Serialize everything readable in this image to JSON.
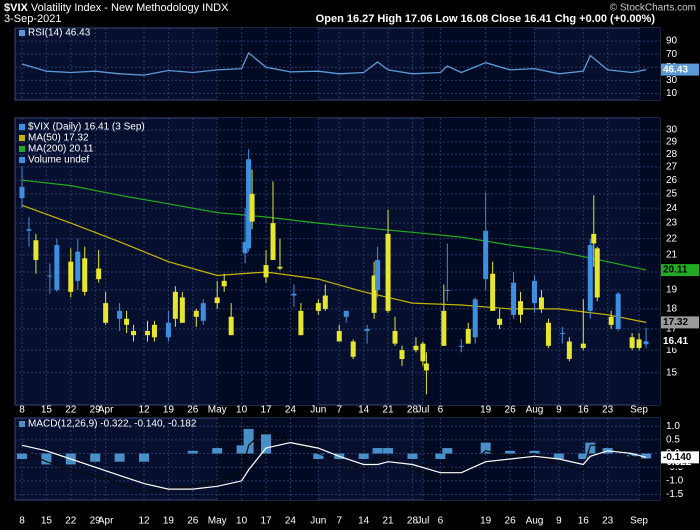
{
  "header": {
    "symbol": "$VIX",
    "name": "Volatility Index - New Methodology",
    "exchange": "INDX",
    "date": "3-Sep-2021",
    "quote": "Open 16.27 High 17.06 Low 16.08 Close 16.41 Chg +0.00 (+0.00%)",
    "credit": "© StockCharts.com"
  },
  "chart_data": [
    {
      "type": "line",
      "name": "RSI(14) 46.43",
      "color": "#5b9bd5",
      "last": 46.43,
      "grid": true,
      "xlim": [
        "2021-03-06",
        "2021-09-07"
      ],
      "x": [
        "2021-03-08",
        "2021-03-15",
        "2021-03-22",
        "2021-03-29",
        "2021-04-05",
        "2021-04-12",
        "2021-04-19",
        "2021-04-26",
        "2021-05-03",
        "2021-05-10",
        "2021-05-12",
        "2021-05-17",
        "2021-05-24",
        "2021-06-01",
        "2021-06-07",
        "2021-06-14",
        "2021-06-18",
        "2021-06-21",
        "2021-06-28",
        "2021-07-06",
        "2021-07-08",
        "2021-07-12",
        "2021-07-19",
        "2021-07-26",
        "2021-08-02",
        "2021-08-09",
        "2021-08-16",
        "2021-08-18",
        "2021-08-23",
        "2021-08-30",
        "2021-09-03"
      ],
      "values": [
        55,
        44,
        42,
        44,
        40,
        38,
        45,
        42,
        46,
        48,
        72,
        50,
        43,
        44,
        40,
        42,
        58,
        46,
        40,
        42,
        52,
        42,
        57,
        46,
        48,
        40,
        44,
        68,
        46,
        42,
        46.43
      ],
      "ylim": [
        0,
        110
      ],
      "yticks": [
        10,
        30,
        50,
        70,
        90
      ]
    },
    {
      "type": "candlestick",
      "name": "$VIX (Daily) 16.41 (3 Sep)",
      "last": 16.41,
      "log_scale": true,
      "grid": true,
      "up_color": "#3d8fe0",
      "down_color": "#e6e62e",
      "legend_color": "#3d8fe0",
      "volume_label": "Volume undef",
      "xlim": [
        "2021-03-06",
        "2021-09-07"
      ],
      "xticks": [
        {
          "value": "2021-03-08",
          "label": "8"
        },
        {
          "value": "2021-03-15",
          "label": "15"
        },
        {
          "value": "2021-03-22",
          "label": "22"
        },
        {
          "value": "2021-03-29",
          "label": "29"
        },
        {
          "value": "2021-04-01",
          "label": "Apr"
        },
        {
          "value": "2021-04-12",
          "label": "12"
        },
        {
          "value": "2021-04-19",
          "label": "19"
        },
        {
          "value": "2021-04-26",
          "label": "26"
        },
        {
          "value": "2021-05-03",
          "label": "May"
        },
        {
          "value": "2021-05-10",
          "label": "10"
        },
        {
          "value": "2021-05-17",
          "label": "17"
        },
        {
          "value": "2021-05-24",
          "label": "24"
        },
        {
          "value": "2021-06-01",
          "label": "Jun"
        },
        {
          "value": "2021-06-07",
          "label": "7"
        },
        {
          "value": "2021-06-14",
          "label": "14"
        },
        {
          "value": "2021-06-21",
          "label": "21"
        },
        {
          "value": "2021-06-28",
          "label": "28"
        },
        {
          "value": "2021-07-01",
          "label": "Jul"
        },
        {
          "value": "2021-07-06",
          "label": "6"
        },
        {
          "value": "2021-07-19",
          "label": "19"
        },
        {
          "value": "2021-07-26",
          "label": "26"
        },
        {
          "value": "2021-08-02",
          "label": "Aug"
        },
        {
          "value": "2021-08-09",
          "label": "9"
        },
        {
          "value": "2021-08-16",
          "label": "16"
        },
        {
          "value": "2021-08-23",
          "label": "23"
        },
        {
          "value": "2021-09-01",
          "label": "Sep"
        }
      ],
      "x": [
        "2021-03-08",
        "2021-03-10",
        "2021-03-12",
        "2021-03-16",
        "2021-03-18",
        "2021-03-22",
        "2021-03-24",
        "2021-03-26",
        "2021-03-30",
        "2021-04-01",
        "2021-04-05",
        "2021-04-07",
        "2021-04-09",
        "2021-04-13",
        "2021-04-15",
        "2021-04-19",
        "2021-04-21",
        "2021-04-23",
        "2021-04-27",
        "2021-04-29",
        "2021-05-03",
        "2021-05-05",
        "2021-05-07",
        "2021-05-11",
        "2021-05-12",
        "2021-05-13",
        "2021-05-17",
        "2021-05-19",
        "2021-05-21",
        "2021-05-25",
        "2021-05-27",
        "2021-06-01",
        "2021-06-03",
        "2021-06-07",
        "2021-06-09",
        "2021-06-11",
        "2021-06-15",
        "2021-06-17",
        "2021-06-18",
        "2021-06-21",
        "2021-06-23",
        "2021-06-25",
        "2021-06-29",
        "2021-07-01",
        "2021-07-02",
        "2021-07-07",
        "2021-07-08",
        "2021-07-12",
        "2021-07-14",
        "2021-07-16",
        "2021-07-19",
        "2021-07-21",
        "2021-07-23",
        "2021-07-27",
        "2021-07-29",
        "2021-08-02",
        "2021-08-04",
        "2021-08-06",
        "2021-08-10",
        "2021-08-12",
        "2021-08-16",
        "2021-08-18",
        "2021-08-19",
        "2021-08-20",
        "2021-08-24",
        "2021-08-26",
        "2021-08-30",
        "2021-09-01",
        "2021-09-03"
      ],
      "open": [
        24.7,
        22.5,
        21.9,
        19.8,
        19.0,
        20.6,
        19.5,
        20.8,
        20.2,
        18.3,
        17.5,
        17.5,
        16.9,
        16.9,
        17.2,
        16.6,
        18.9,
        18.6,
        17.9,
        17.4,
        18.6,
        19.5,
        17.6,
        21.1,
        21.4,
        25.0,
        20.4,
        23.0,
        20.3,
        18.7,
        17.9,
        18.3,
        18.7,
        16.9,
        17.6,
        16.4,
        16.9,
        19.8,
        19.0,
        22.3,
        16.9,
        16.0,
        16.2,
        16.3,
        15.4,
        17.9,
        19.0,
        16.2,
        17.0,
        16.6,
        19.6,
        19.9,
        17.5,
        17.7,
        18.4,
        18.3,
        18.6,
        17.3,
        16.8,
        16.4,
        16.3,
        17.9,
        22.3,
        21.4,
        17.6,
        17.0,
        16.6,
        16.5,
        16.27
      ],
      "high": [
        27.0,
        23.4,
        22.3,
        20.5,
        22.0,
        21.4,
        22.0,
        21.5,
        21.3,
        18.9,
        18.3,
        17.9,
        17.2,
        17.4,
        17.4,
        17.9,
        19.2,
        18.9,
        18.0,
        18.5,
        19.5,
        19.9,
        18.3,
        24.0,
        28.4,
        26.8,
        21.3,
        25.9,
        22.0,
        19.3,
        18.3,
        18.5,
        19.3,
        17.2,
        17.9,
        16.5,
        17.2,
        20.6,
        21.5,
        23.9,
        17.6,
        16.2,
        16.6,
        16.4,
        15.9,
        19.3,
        21.7,
        16.5,
        17.3,
        18.6,
        25.1,
        20.6,
        18.0,
        20.0,
        18.9,
        19.8,
        19.0,
        17.5,
        17.1,
        16.6,
        18.5,
        22.0,
        24.9,
        21.5,
        17.9,
        18.9,
        16.8,
        16.8,
        17.06
      ],
      "low": [
        24.0,
        21.5,
        19.9,
        18.8,
        18.9,
        18.6,
        19.0,
        18.7,
        19.4,
        17.2,
        16.9,
        16.8,
        16.4,
        16.4,
        16.4,
        16.4,
        17.1,
        17.3,
        17.1,
        17.2,
        18.0,
        18.9,
        16.7,
        20.5,
        21.2,
        22.6,
        19.4,
        20.7,
        20.1,
        18.1,
        16.7,
        17.7,
        17.9,
        16.4,
        17.3,
        15.6,
        16.3,
        17.5,
        18.6,
        17.8,
        16.2,
        15.3,
        15.9,
        15.3,
        14.1,
        16.2,
        18.4,
        15.9,
        16.3,
        16.3,
        19.0,
        17.9,
        17.0,
        17.5,
        17.3,
        17.8,
        17.8,
        16.1,
        16.3,
        15.5,
        16.0,
        17.5,
        20.3,
        18.4,
        17.0,
        16.9,
        16.0,
        16.0,
        16.08
      ],
      "close": [
        25.5,
        22.6,
        20.7,
        19.8,
        21.6,
        18.9,
        21.2,
        18.9,
        19.6,
        17.3,
        17.9,
        17.2,
        16.7,
        16.7,
        16.6,
        17.3,
        17.5,
        17.3,
        17.6,
        18.3,
        18.3,
        19.2,
        16.7,
        21.8,
        27.6,
        23.1,
        19.7,
        20.7,
        20.2,
        18.8,
        16.7,
        17.9,
        18.0,
        16.4,
        17.9,
        15.7,
        17.0,
        17.8,
        20.7,
        17.9,
        16.3,
        15.6,
        16.0,
        15.5,
        15.1,
        16.2,
        19.0,
        16.2,
        16.3,
        18.5,
        22.5,
        17.9,
        17.2,
        19.4,
        17.7,
        19.5,
        18.0,
        16.2,
        16.8,
        15.6,
        16.1,
        21.6,
        21.7,
        18.6,
        17.2,
        18.8,
        16.1,
        16.1,
        16.41
      ],
      "overlays": [
        {
          "name": "MA(50) 17.32",
          "color": "#c8b400",
          "tag_color": "#9a9a9a",
          "last": 17.32,
          "x": [
            "2021-03-08",
            "2021-03-22",
            "2021-04-05",
            "2021-04-19",
            "2021-05-03",
            "2021-05-17",
            "2021-06-01",
            "2021-06-14",
            "2021-06-28",
            "2021-07-12",
            "2021-07-26",
            "2021-08-09",
            "2021-08-23",
            "2021-09-03"
          ],
          "values": [
            24.2,
            23.0,
            21.8,
            20.6,
            19.8,
            20.0,
            19.6,
            18.9,
            18.3,
            18.2,
            18.0,
            18.0,
            17.7,
            17.32
          ]
        },
        {
          "name": "MA(200) 20.11",
          "color": "#22aa22",
          "tag_color": "#22aa22",
          "last": 20.11,
          "x": [
            "2021-03-08",
            "2021-03-22",
            "2021-04-05",
            "2021-04-19",
            "2021-05-03",
            "2021-05-17",
            "2021-06-01",
            "2021-06-14",
            "2021-06-28",
            "2021-07-12",
            "2021-07-26",
            "2021-08-09",
            "2021-08-23",
            "2021-09-03"
          ],
          "values": [
            26.0,
            25.6,
            24.9,
            24.3,
            23.7,
            23.4,
            23.0,
            22.7,
            22.4,
            22.1,
            21.6,
            21.2,
            20.6,
            20.11
          ]
        }
      ],
      "ylim": [
        13.68,
        31.05
      ],
      "yticks": [
        15,
        16,
        17,
        18,
        19,
        20,
        21,
        22,
        23,
        24,
        25,
        26,
        27,
        28,
        29,
        30
      ]
    },
    {
      "type": "macd",
      "name": "MACD(12,26,9) -0.322, -0.140, -0.182",
      "grid": true,
      "xlim": [
        "2021-03-06",
        "2021-09-07"
      ],
      "xticks": [
        {
          "value": "2021-03-08",
          "label": "8"
        },
        {
          "value": "2021-03-15",
          "label": "15"
        },
        {
          "value": "2021-03-22",
          "label": "22"
        },
        {
          "value": "2021-03-29",
          "label": "29"
        },
        {
          "value": "2021-04-01",
          "label": "Apr"
        },
        {
          "value": "2021-04-12",
          "label": "12"
        },
        {
          "value": "2021-04-19",
          "label": "19"
        },
        {
          "value": "2021-04-26",
          "label": "26"
        },
        {
          "value": "2021-05-03",
          "label": "May"
        },
        {
          "value": "2021-05-10",
          "label": "10"
        },
        {
          "value": "2021-05-17",
          "label": "17"
        },
        {
          "value": "2021-05-24",
          "label": "24"
        },
        {
          "value": "2021-06-01",
          "label": "Jun"
        },
        {
          "value": "2021-06-07",
          "label": "7"
        },
        {
          "value": "2021-06-14",
          "label": "14"
        },
        {
          "value": "2021-06-21",
          "label": "21"
        },
        {
          "value": "2021-06-28",
          "label": "28"
        },
        {
          "value": "2021-07-01",
          "label": "Jul"
        },
        {
          "value": "2021-07-06",
          "label": "6"
        },
        {
          "value": "2021-07-19",
          "label": "19"
        },
        {
          "value": "2021-07-26",
          "label": "26"
        },
        {
          "value": "2021-08-02",
          "label": "Aug"
        },
        {
          "value": "2021-08-09",
          "label": "9"
        },
        {
          "value": "2021-08-16",
          "label": "16"
        },
        {
          "value": "2021-08-23",
          "label": "23"
        },
        {
          "value": "2021-09-01",
          "label": "Sep"
        }
      ],
      "x": [
        "2021-03-08",
        "2021-03-15",
        "2021-03-22",
        "2021-03-29",
        "2021-04-05",
        "2021-04-12",
        "2021-04-19",
        "2021-04-26",
        "2021-05-03",
        "2021-05-10",
        "2021-05-12",
        "2021-05-17",
        "2021-05-24",
        "2021-06-01",
        "2021-06-07",
        "2021-06-14",
        "2021-06-18",
        "2021-06-21",
        "2021-06-28",
        "2021-07-06",
        "2021-07-08",
        "2021-07-12",
        "2021-07-19",
        "2021-07-26",
        "2021-08-02",
        "2021-08-09",
        "2021-08-16",
        "2021-08-18",
        "2021-08-23",
        "2021-08-30",
        "2021-09-03"
      ],
      "series": [
        {
          "name": "MACD",
          "color": "#0a0a0a",
          "last": {
            "value": -0.322,
            "label": "-0.322"
          },
          "values": [
            0.1,
            -0.3,
            -0.6,
            -0.8,
            -1.1,
            -1.4,
            -1.3,
            -1.2,
            -1.0,
            -0.7,
            0.3,
            0.9,
            0.4,
            0.0,
            -0.3,
            -0.6,
            -0.2,
            -0.1,
            -0.6,
            -0.9,
            -0.5,
            -0.7,
            0.1,
            -0.1,
            0.0,
            -0.4,
            -0.6,
            0.3,
            0.3,
            -0.1,
            -0.322
          ]
        },
        {
          "name": "Signal",
          "color": "#ffffff",
          "last": {
            "value": -0.14,
            "label": "-0.140"
          },
          "values": [
            0.3,
            0.1,
            -0.2,
            -0.5,
            -0.8,
            -1.1,
            -1.3,
            -1.3,
            -1.2,
            -1.0,
            -0.6,
            0.2,
            0.4,
            0.2,
            -0.1,
            -0.4,
            -0.4,
            -0.3,
            -0.4,
            -0.7,
            -0.7,
            -0.7,
            -0.3,
            -0.2,
            -0.1,
            -0.2,
            -0.4,
            -0.1,
            0.1,
            0.0,
            -0.14
          ]
        }
      ],
      "histogram": {
        "color": "#4a90c8",
        "values": [
          -0.2,
          -0.4,
          -0.4,
          -0.3,
          -0.3,
          -0.3,
          0.0,
          0.1,
          0.2,
          0.3,
          0.9,
          0.7,
          0.0,
          -0.2,
          -0.2,
          -0.2,
          0.2,
          0.2,
          -0.2,
          -0.2,
          0.2,
          0.0,
          0.4,
          0.1,
          0.1,
          -0.2,
          -0.2,
          0.4,
          0.2,
          -0.1,
          -0.182
        ]
      },
      "ylim": [
        -1.7,
        1.3
      ],
      "yticks": [
        {
          "value": 1,
          "label": "1.0"
        },
        0.5,
        {
          "value": 0,
          "label": "0.0"
        },
        -0.5,
        {
          "value": -1,
          "label": "-1.0"
        },
        -1.5
      ]
    }
  ]
}
